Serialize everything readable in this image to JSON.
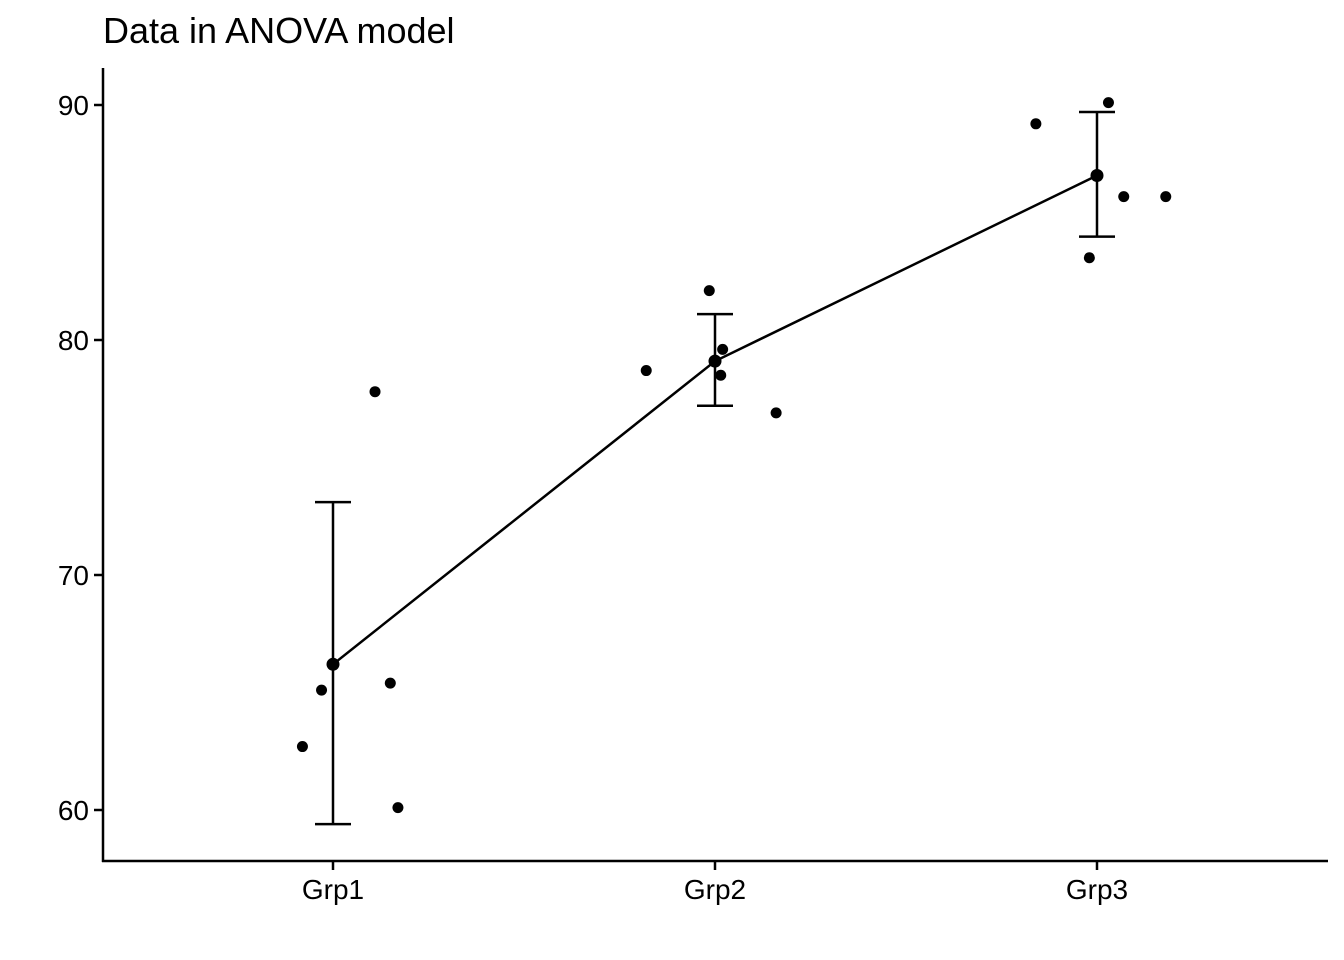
{
  "chart_data": {
    "type": "scatter",
    "title": "Data in ANOVA model",
    "xlabel": "",
    "ylabel": "",
    "categories": [
      "Grp1",
      "Grp2",
      "Grp3"
    ],
    "ylim": [
      58,
      92
    ],
    "yticks": [
      60,
      70,
      80,
      90
    ],
    "grid": false,
    "points": [
      {
        "group": "Grp1",
        "jitter": -0.03,
        "y": 65.1
      },
      {
        "group": "Grp1",
        "jitter": -0.08,
        "y": 62.7
      },
      {
        "group": "Grp1",
        "jitter": 0.11,
        "y": 77.8
      },
      {
        "group": "Grp1",
        "jitter": 0.15,
        "y": 65.4
      },
      {
        "group": "Grp1",
        "jitter": 0.17,
        "y": 60.1
      },
      {
        "group": "Grp2",
        "jitter": -0.18,
        "y": 78.7
      },
      {
        "group": "Grp2",
        "jitter": -0.015,
        "y": 82.1
      },
      {
        "group": "Grp2",
        "jitter": 0.015,
        "y": 78.5
      },
      {
        "group": "Grp2",
        "jitter": 0.02,
        "y": 79.6
      },
      {
        "group": "Grp2",
        "jitter": 0.16,
        "y": 76.9
      },
      {
        "group": "Grp3",
        "jitter": -0.16,
        "y": 89.2
      },
      {
        "group": "Grp3",
        "jitter": -0.02,
        "y": 83.5
      },
      {
        "group": "Grp3",
        "jitter": 0.03,
        "y": 90.1
      },
      {
        "group": "Grp3",
        "jitter": 0.07,
        "y": 86.1
      },
      {
        "group": "Grp3",
        "jitter": 0.18,
        "y": 86.1
      }
    ],
    "means": [
      {
        "group": "Grp1",
        "mean": 66.2,
        "lower": 59.4,
        "upper": 73.1
      },
      {
        "group": "Grp2",
        "mean": 79.1,
        "lower": 77.2,
        "upper": 81.1
      },
      {
        "group": "Grp3",
        "mean": 87.0,
        "lower": 84.4,
        "upper": 89.7
      }
    ],
    "colors": {
      "marks": "#000000",
      "background": "#ffffff"
    }
  }
}
